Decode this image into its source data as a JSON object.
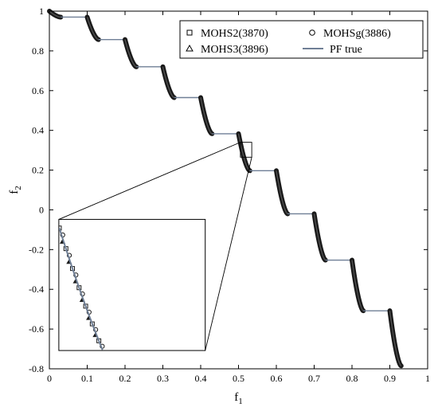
{
  "chart_data": {
    "type": "scatter",
    "xlabel": "f",
    "xlabel_sub": "1",
    "ylabel": "f",
    "ylabel_sub": "2",
    "xlim": [
      0,
      1
    ],
    "ylim": [
      -0.8,
      1
    ],
    "x_ticks": [
      0,
      0.1,
      0.2,
      0.3,
      0.4,
      0.5,
      0.6,
      0.7,
      0.8,
      0.9,
      1
    ],
    "x_tick_labels": [
      "0",
      "0.1",
      "0.2",
      "0.3",
      "0.4",
      "0.5",
      "0.6",
      "0.7",
      "0.8",
      "0.9",
      "1"
    ],
    "y_ticks": [
      1,
      0.8,
      0.6,
      0.4,
      0.2,
      0,
      -0.2,
      -0.4,
      -0.6,
      -0.8
    ],
    "y_tick_labels": [
      "1",
      "0.8",
      "0.6",
      "0.4",
      "0.2",
      "0",
      "-0.2",
      "-0.4",
      "-0.6",
      "-0.8"
    ],
    "grid": false,
    "legend_position": "top-right",
    "legend": [
      {
        "label": "MOHS2(3870)",
        "marker": "square"
      },
      {
        "label": "MOHSg(3886)",
        "marker": "circle"
      },
      {
        "label": "MOHS3(3896)",
        "marker": "triangle"
      },
      {
        "label": "PF true",
        "marker": "line"
      }
    ],
    "pareto_segments": [
      {
        "drop": [
          0.0,
          0.03
        ],
        "y_top": 1.0,
        "y_bottom": 0.97,
        "flat_to": 0.1
      },
      {
        "drop": [
          0.1,
          0.13
        ],
        "y_top": 0.97,
        "y_bottom": 0.857,
        "flat_to": 0.2
      },
      {
        "drop": [
          0.2,
          0.23
        ],
        "y_top": 0.857,
        "y_bottom": 0.72,
        "flat_to": 0.3
      },
      {
        "drop": [
          0.3,
          0.33
        ],
        "y_top": 0.72,
        "y_bottom": 0.565,
        "flat_to": 0.4
      },
      {
        "drop": [
          0.4,
          0.43
        ],
        "y_top": 0.565,
        "y_bottom": 0.383,
        "flat_to": 0.5
      },
      {
        "drop": [
          0.5,
          0.53
        ],
        "y_top": 0.383,
        "y_bottom": 0.197,
        "flat_to": 0.6
      },
      {
        "drop": [
          0.6,
          0.63
        ],
        "y_top": 0.197,
        "y_bottom": -0.02,
        "flat_to": 0.7
      },
      {
        "drop": [
          0.7,
          0.73
        ],
        "y_top": -0.02,
        "y_bottom": -0.253,
        "flat_to": 0.8
      },
      {
        "drop": [
          0.8,
          0.83
        ],
        "y_top": -0.253,
        "y_bottom": -0.508,
        "flat_to": 0.9
      },
      {
        "drop": [
          0.9,
          0.93
        ],
        "y_top": -0.508,
        "y_bottom": -0.785,
        "flat_to": null
      }
    ],
    "zoom_region": {
      "x": [
        0.505,
        0.535
      ],
      "y": [
        0.265,
        0.34
      ]
    },
    "inset_axes": {
      "x": [
        0.025,
        0.412
      ],
      "y": [
        -0.708,
        -0.048
      ]
    },
    "colors": {
      "pf_true": "#6f7f96",
      "markers": "#1a1a1a"
    }
  }
}
